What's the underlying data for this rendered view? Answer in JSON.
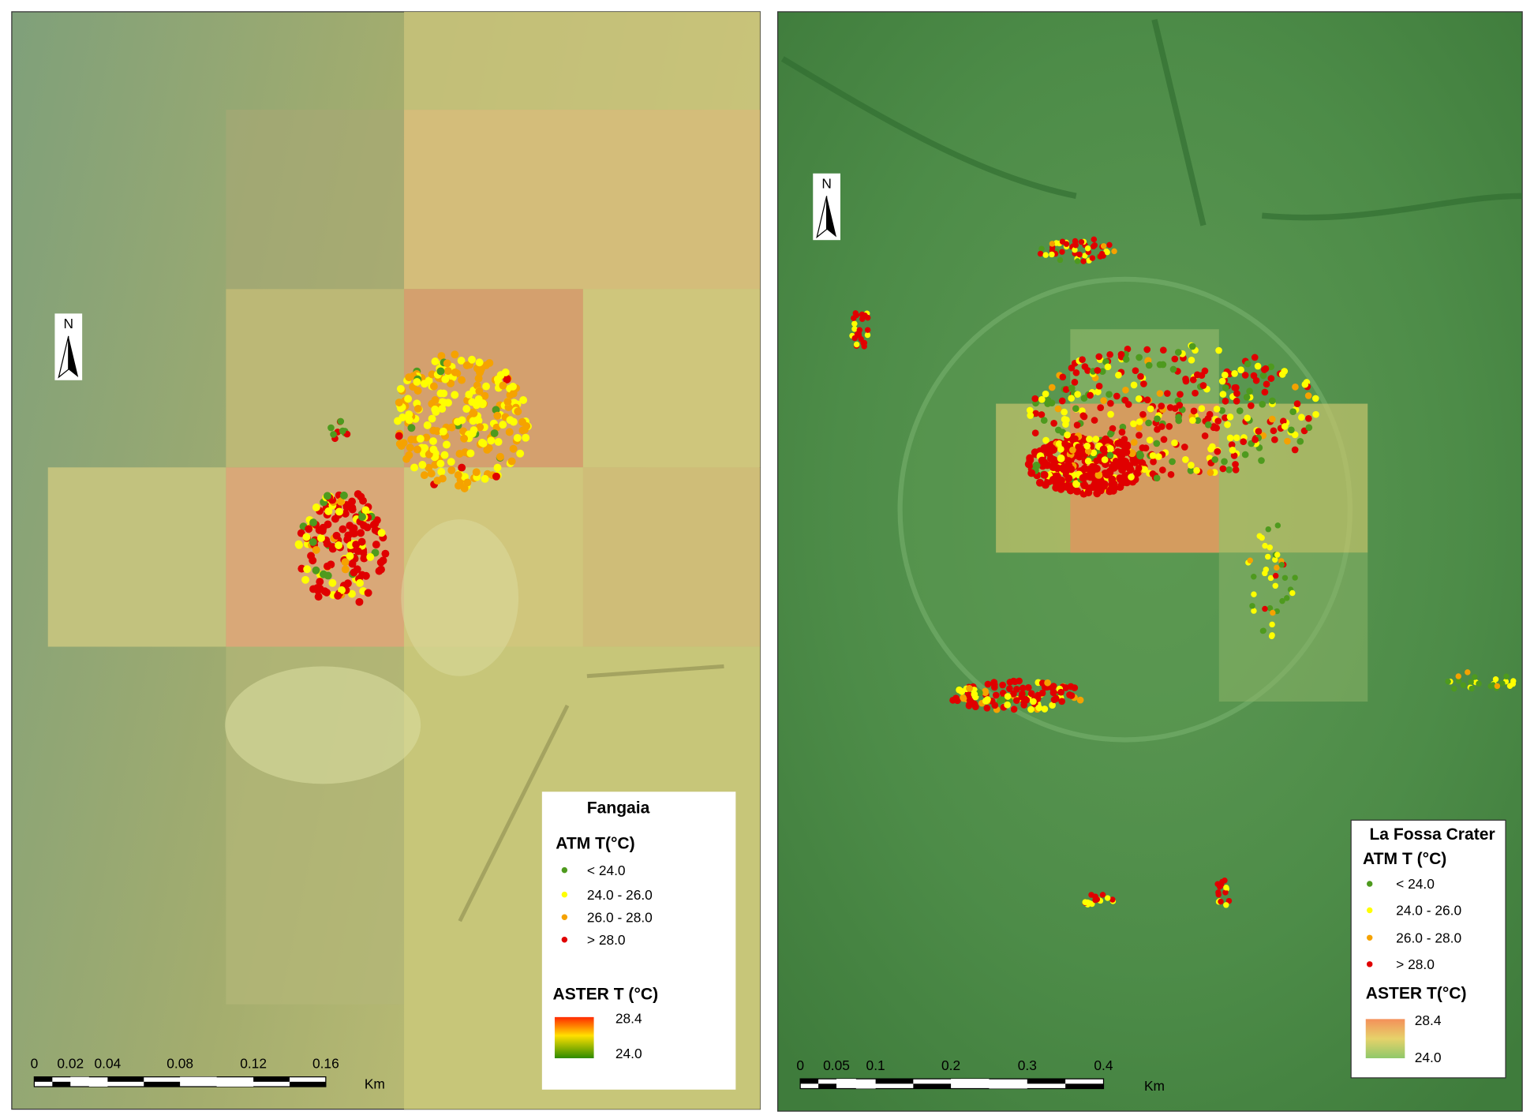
{
  "panels": [
    {
      "legend": {
        "title": "Fangaia",
        "atm_title": "ATM T(°C)",
        "atm_classes": [
          "< 24.0",
          "24.0 - 26.0",
          "26.0 - 28.0",
          "> 28.0"
        ],
        "aster_title": "ASTER T (°C)",
        "aster_max": "28.4",
        "aster_min": "24.0"
      },
      "north": "N",
      "scale_labels": [
        "0",
        "0.02",
        "0.04",
        "0.08",
        "0.12",
        "0.16"
      ],
      "scale_unit": "Km"
    },
    {
      "legend": {
        "title": "La Fossa Crater",
        "atm_title": "ATM T (°C)",
        "atm_classes": [
          "< 24.0",
          "24.0 - 26.0",
          "26.0 - 28.0",
          "> 28.0"
        ],
        "aster_title": "ASTER T(°C)",
        "aster_max": "28.4",
        "aster_min": "24.0"
      },
      "north": "N",
      "scale_labels": [
        "0",
        "0.05",
        "0.1",
        "0.2",
        "0.3",
        "0.4"
      ],
      "scale_unit": "Km"
    }
  ]
}
